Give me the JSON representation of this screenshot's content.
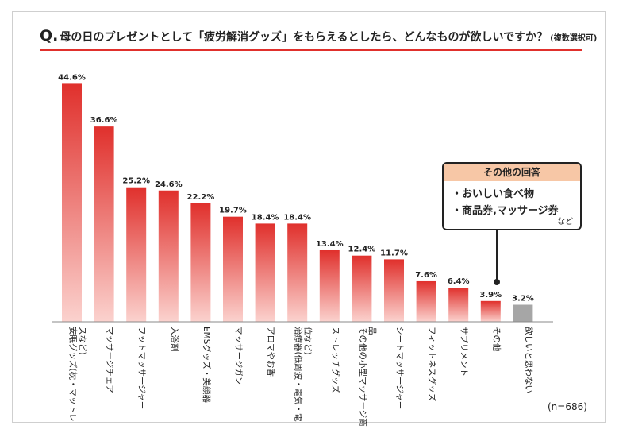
{
  "title": {
    "prefix": "Q.",
    "main": "母の日のプレゼントとして「疲労解消グッズ」をもらえるとしたら、どんなものが欲しいですか？",
    "note": "(複数選択可)"
  },
  "sample_note": "(n=686)",
  "callout": {
    "heading": "その他の回答",
    "items": [
      "・おいしい食べ物",
      "・商品券,マッサージ券"
    ],
    "tail": "など"
  },
  "colors": {
    "bar_top": "#e0302c",
    "bar_bottom": "#fbd2ce",
    "other_bar": "#a6a6a6",
    "accent": "#e0302c"
  },
  "chart_data": {
    "type": "bar",
    "categories": [
      "安眠グッズ(枕・マットレスなど)",
      "マッサージチェア",
      "フットマッサージャー",
      "入浴剤",
      "EMSグッズ・美顔器",
      "マッサージガン",
      "アロマやお香",
      "治療器(低周波・電気・電位など)",
      "ストレッチグッズ",
      "その他の小型マッサージ商品",
      "シートマッサージャー",
      "フィットネスグッズ",
      "サプリメント",
      "その他",
      "欲しいと思わない"
    ],
    "values": [
      44.6,
      36.6,
      25.2,
      24.6,
      22.2,
      19.7,
      18.4,
      18.4,
      13.4,
      12.4,
      11.7,
      7.6,
      6.4,
      3.9,
      3.2
    ],
    "value_labels": [
      "44.6%",
      "36.6%",
      "25.2%",
      "24.6%",
      "22.2%",
      "19.7%",
      "18.4%",
      "18.4%",
      "13.4%",
      "12.4%",
      "11.7%",
      "7.6%",
      "6.4%",
      "3.9%",
      "3.2%"
    ],
    "highlight_gray_index": 14,
    "ylim": [
      0,
      46
    ],
    "grid": false,
    "legend": "none"
  }
}
